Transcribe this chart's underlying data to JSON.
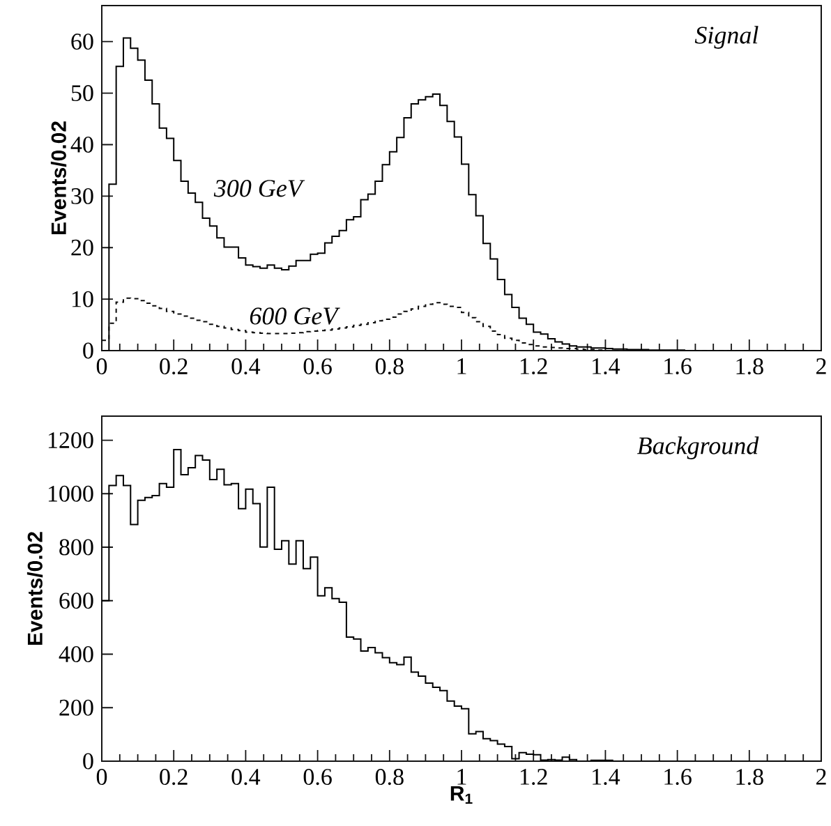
{
  "chart_data": [
    {
      "type": "histogram",
      "title": "*Signal*",
      "ylabel": "Events/0.02",
      "bins": [
        0,
        0.02,
        0.04,
        0.06,
        0.08,
        0.1,
        0.12,
        0.14,
        0.16,
        0.18,
        0.2,
        0.22,
        0.24,
        0.26,
        0.28,
        0.3,
        0.32,
        0.34,
        0.36,
        0.38,
        0.4,
        0.42,
        0.44,
        0.46,
        0.48,
        0.5,
        0.52,
        0.54,
        0.56,
        0.58,
        0.6,
        0.62,
        0.64,
        0.66,
        0.68,
        0.7,
        0.72,
        0.74,
        0.76,
        0.78,
        0.8,
        0.82,
        0.84,
        0.86,
        0.88,
        0.9,
        0.92,
        0.94,
        0.96,
        0.98,
        1,
        1.02,
        1.04,
        1.06,
        1.08,
        1.1,
        1.12,
        1.14,
        1.16,
        1.18,
        1.2,
        1.22,
        1.24,
        1.26,
        1.28,
        1.3,
        1.32,
        1.34,
        1.36,
        1.38,
        1.4,
        1.42,
        1.44,
        1.46,
        1.48,
        1.5,
        1.52,
        1.54,
        1.56,
        1.58,
        1.6,
        1.62,
        1.64,
        1.66,
        1.68,
        1.7,
        1.72,
        1.74,
        1.76,
        1.78,
        1.8,
        1.82,
        1.84,
        1.86,
        1.88,
        1.9,
        1.92,
        1.94,
        1.96,
        1.98,
        2
      ],
      "series": [
        {
          "name": "*300 GeV*",
          "color": "#000000",
          "line_style": "solid",
          "values": [
            0,
            32.3,
            55.2,
            60.7,
            58.7,
            56.4,
            52.5,
            47.9,
            43.2,
            41.2,
            36.9,
            32.9,
            30.6,
            28.8,
            25.7,
            24.2,
            21.9,
            20.1,
            20.1,
            18.0,
            16.6,
            16.3,
            16.0,
            16.6,
            16.0,
            15.7,
            16.4,
            17.5,
            17.5,
            18.7,
            18.9,
            20.9,
            22.2,
            23.3,
            25.4,
            26.0,
            29.3,
            30.4,
            32.9,
            36.1,
            38.6,
            41.4,
            45.2,
            47.9,
            48.7,
            49.3,
            49.8,
            47.6,
            44.5,
            41.5,
            36.2,
            30.3,
            26.2,
            20.8,
            17.8,
            13.8,
            10.9,
            8.4,
            6.3,
            5.1,
            3.6,
            3.2,
            2.3,
            1.7,
            1.3,
            0.9,
            0.7,
            0.7,
            0.5,
            0.5,
            0.4,
            0.3,
            0.3,
            0.2,
            0.2,
            0.2,
            0.1,
            0.1,
            0.1,
            0.1,
            0.1,
            0,
            0,
            0,
            0,
            0,
            0,
            0,
            0,
            0,
            0,
            0,
            0,
            0,
            0,
            0,
            0,
            0,
            0,
            0
          ]
        },
        {
          "name": "*600 GeV*",
          "color": "#0a0a0a",
          "line_style": "dashed",
          "values": [
            2.0,
            5.3,
            9.4,
            10.2,
            10.1,
            9.7,
            9.2,
            8.7,
            8.2,
            7.6,
            7.1,
            6.7,
            6.3,
            5.9,
            5.6,
            5.1,
            4.7,
            4.4,
            4.1,
            3.9,
            3.6,
            3.5,
            3.4,
            3.3,
            3.3,
            3.3,
            3.4,
            3.5,
            3.7,
            3.8,
            3.9,
            4.0,
            4.2,
            4.4,
            4.6,
            4.9,
            5.1,
            5.4,
            5.8,
            6.1,
            6.5,
            7.1,
            7.6,
            8.1,
            8.6,
            9.0,
            9.3,
            9.0,
            8.6,
            8.4,
            7.4,
            6.4,
            5.6,
            4.7,
            3.8,
            3.1,
            2.4,
            2.0,
            1.5,
            1.2,
            0.9,
            0.7,
            0.6,
            0.5,
            0.4,
            0.4,
            0.3,
            0.2,
            0.2,
            0.1,
            0,
            0,
            0,
            0,
            0,
            0,
            0,
            0,
            0,
            0,
            0,
            0,
            0,
            0,
            0,
            0,
            0,
            0,
            0,
            0,
            0,
            0,
            0,
            0,
            0,
            0,
            0,
            0,
            0,
            0
          ]
        }
      ],
      "xlim": [
        0,
        2
      ],
      "ylim": [
        0,
        67
      ],
      "xticks": [
        0,
        0.2,
        0.4,
        0.6,
        0.8,
        1,
        1.2,
        1.4,
        1.6,
        1.8,
        2
      ],
      "yticks": [
        0,
        10,
        20,
        30,
        40,
        50,
        60
      ]
    },
    {
      "type": "histogram",
      "title": "*Background*",
      "ylabel": "Events/0.02",
      "xlabel": "R$_{1}$",
      "bins": [
        0,
        0.02,
        0.04,
        0.06,
        0.08,
        0.1,
        0.12,
        0.14,
        0.16,
        0.18,
        0.2,
        0.22,
        0.24,
        0.26,
        0.28,
        0.3,
        0.32,
        0.34,
        0.36,
        0.38,
        0.4,
        0.42,
        0.44,
        0.46,
        0.48,
        0.5,
        0.52,
        0.54,
        0.56,
        0.58,
        0.6,
        0.62,
        0.64,
        0.66,
        0.68,
        0.7,
        0.72,
        0.74,
        0.76,
        0.78,
        0.8,
        0.82,
        0.84,
        0.86,
        0.88,
        0.9,
        0.92,
        0.94,
        0.96,
        0.98,
        1,
        1.02,
        1.04,
        1.06,
        1.08,
        1.1,
        1.12,
        1.14,
        1.16,
        1.18,
        1.2,
        1.22,
        1.24,
        1.26,
        1.28,
        1.3,
        1.32,
        1.34,
        1.36,
        1.38,
        1.4,
        1.42,
        1.44,
        1.46,
        1.48,
        1.5,
        1.52,
        1.54,
        1.56,
        1.58,
        1.6,
        1.62,
        1.64,
        1.66,
        1.68,
        1.7,
        1.72,
        1.74,
        1.76,
        1.78,
        1.8,
        1.82,
        1.84,
        1.86,
        1.88,
        1.9,
        1.92,
        1.94,
        1.96,
        1.98,
        2
      ],
      "series": [
        {
          "color": "#000000",
          "line_style": "solid",
          "values": [
            600,
            1031,
            1068,
            1031,
            885,
            975,
            986,
            993,
            1038,
            1024,
            1165,
            1071,
            1097,
            1143,
            1126,
            1053,
            1091,
            1033,
            1038,
            944,
            1017,
            963,
            801,
            1024,
            792,
            824,
            737,
            824,
            720,
            763,
            618,
            648,
            608,
            594,
            464,
            457,
            412,
            425,
            405,
            387,
            368,
            361,
            389,
            333,
            318,
            292,
            276,
            264,
            225,
            206,
            196,
            102,
            111,
            84,
            77,
            64,
            55,
            9,
            32,
            26,
            24,
            4,
            6,
            4,
            15,
            6,
            0,
            0,
            3,
            3,
            3,
            0,
            0,
            0,
            0,
            0,
            0,
            0,
            0,
            0,
            0,
            0,
            0,
            0,
            0,
            0,
            0,
            0,
            0,
            0,
            0,
            0,
            0,
            0,
            0,
            0,
            0,
            0,
            0,
            0
          ]
        }
      ],
      "xlim": [
        0,
        2
      ],
      "ylim": [
        0,
        1290
      ],
      "xticks": [
        0,
        0.2,
        0.4,
        0.6,
        0.8,
        1,
        1.2,
        1.4,
        1.6,
        1.8,
        2
      ],
      "yticks": [
        0,
        200,
        400,
        600,
        800,
        1000,
        1200
      ]
    }
  ]
}
